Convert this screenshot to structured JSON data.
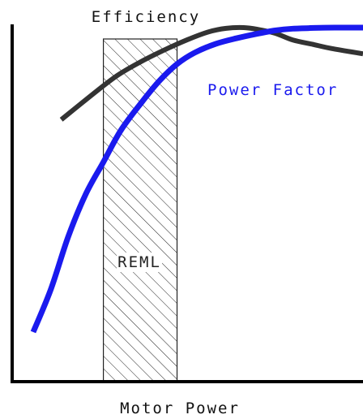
{
  "chart_data": {
    "type": "line",
    "title": "",
    "xlabel": "Motor Power",
    "ylabel": "",
    "axes": {
      "ticks": false,
      "grid": false
    },
    "xlim": [
      0,
      100
    ],
    "ylim": [
      0,
      100
    ],
    "region": {
      "label": "REML",
      "x_range": [
        26,
        47
      ],
      "pattern": "diagonal-hatch"
    },
    "series": [
      {
        "name": "Efficiency",
        "color": "#333333",
        "x": [
          14,
          24,
          30,
          36,
          43,
          50,
          56,
          61,
          66,
          70,
          75,
          80,
          86,
          91,
          100
        ],
        "y": [
          74,
          82,
          86.5,
          90,
          93.5,
          96.6,
          98.8,
          99.8,
          100,
          99.5,
          98.4,
          96.5,
          95.2,
          94.1,
          92.6
        ]
      },
      {
        "name": "Power Factor",
        "color": "#1a1aee",
        "x": [
          6,
          11,
          16,
          21,
          26,
          31,
          37,
          42,
          47,
          52,
          58,
          64,
          70,
          75,
          80,
          86,
          92,
          100
        ],
        "y": [
          14,
          26,
          41,
          53,
          62,
          71,
          79,
          85,
          89.7,
          92.9,
          95.4,
          97,
          98.3,
          99.2,
          99.7,
          99.9,
          100,
          100
        ]
      }
    ]
  }
}
